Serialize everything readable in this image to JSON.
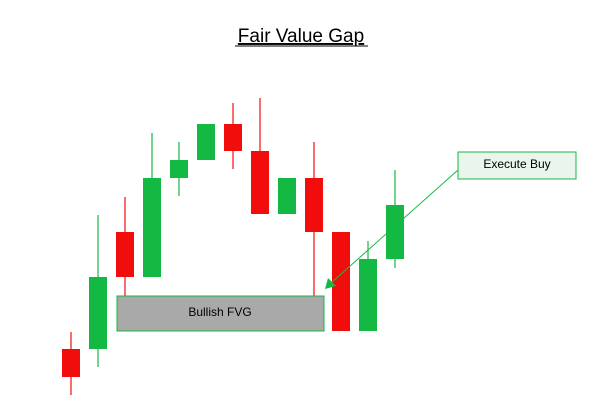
{
  "header": {
    "title": "Fair Value Gap"
  },
  "labels": {
    "fvg": "Bullish FVG",
    "action": "Execute Buy"
  }
}
